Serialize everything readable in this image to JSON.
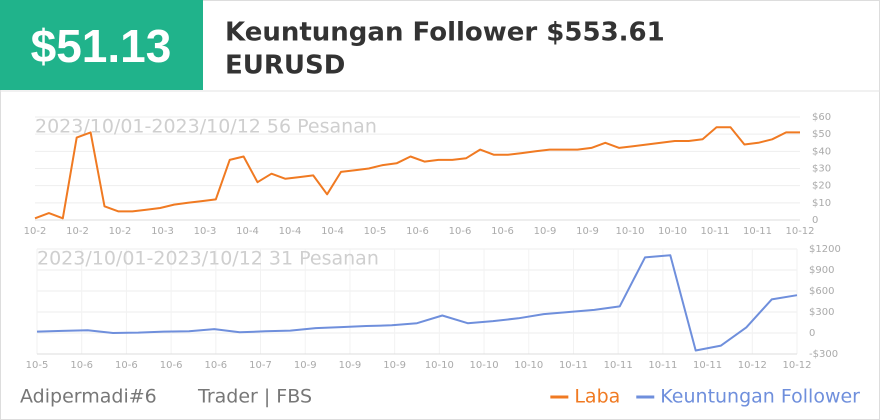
{
  "header": {
    "amount": "$51.13",
    "title": "Keuntungan Follower $553.61",
    "symbol": "EURUSD"
  },
  "chart_data": [
    {
      "type": "line",
      "subtitle": "2023/10/01-2023/10/12 56 Pesanan",
      "x_labels": [
        "10-2",
        "10-2",
        "10-2",
        "10-3",
        "10-3",
        "10-4",
        "10-4",
        "10-4",
        "10-5",
        "10-6",
        "10-6",
        "10-6",
        "10-9",
        "10-9",
        "10-10",
        "10-10",
        "10-11",
        "10-11",
        "10-12"
      ],
      "series": [
        {
          "name": "Laba",
          "color": "#f07a22",
          "values": [
            1,
            4,
            1,
            48,
            51,
            8,
            5,
            5,
            6,
            7,
            9,
            10,
            11,
            12,
            35,
            37,
            22,
            27,
            24,
            25,
            26,
            15,
            28,
            29,
            30,
            32,
            33,
            37,
            34,
            35,
            35,
            36,
            41,
            38,
            38,
            39,
            40,
            41,
            41,
            41,
            42,
            45,
            42,
            43,
            44,
            45,
            46,
            46,
            47,
            54,
            54,
            44,
            45,
            47,
            51,
            51
          ]
        }
      ],
      "ylim": [
        0,
        60
      ],
      "yticks": [
        0,
        {
          "value": 10,
          "label": "$10"
        },
        {
          "value": 20,
          "label": "$20"
        },
        {
          "value": 30,
          "label": "$30"
        },
        {
          "value": 40,
          "label": "$40"
        },
        {
          "value": 50,
          "label": "$50"
        },
        {
          "value": 60,
          "label": "$60"
        }
      ],
      "grid": true
    },
    {
      "type": "line",
      "subtitle": "2023/10/01-2023/10/12 31 Pesanan",
      "x_labels": [
        "10-5",
        "10-6",
        "10-6",
        "10-6",
        "10-6",
        "10-7",
        "10-9",
        "10-9",
        "10-9",
        "10-10",
        "10-10",
        "10-10",
        "10-11",
        "10-11",
        "10-11",
        "10-11",
        "10-12",
        "10-12"
      ],
      "series": [
        {
          "name": "Keuntungan Follower",
          "color": "#6f8fdc",
          "values": [
            20,
            30,
            40,
            0,
            5,
            20,
            25,
            55,
            10,
            25,
            35,
            70,
            85,
            100,
            110,
            140,
            250,
            140,
            170,
            210,
            270,
            300,
            330,
            380,
            1080,
            1110,
            -250,
            -180,
            80,
            480,
            540
          ]
        }
      ],
      "ylim": [
        -300,
        1200
      ],
      "yticks": [
        {
          "value": -300,
          "label": "-$300"
        },
        0,
        {
          "value": 300,
          "label": "$300"
        },
        {
          "value": 600,
          "label": "$600"
        },
        {
          "value": 900,
          "label": "$900"
        },
        {
          "value": 1200,
          "label": "$1200"
        }
      ],
      "grid": true
    }
  ],
  "footer": {
    "user": "Adipermadi#6",
    "broker": "Trader | FBS"
  }
}
